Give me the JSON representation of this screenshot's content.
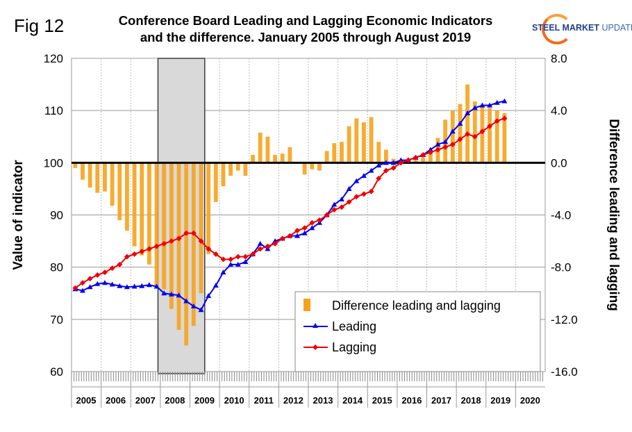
{
  "fig_label": "Fig 12",
  "logo": {
    "text_bold": "STEEL MARKET",
    "text_light": "UPDATE"
  },
  "chart_data": {
    "type": "bar+line",
    "title": "Conference Board Leading and Lagging Economic Indicators and the difference. January 2005 through August 2019",
    "title_lines": [
      "Conference Board Leading and Lagging Economic Indicators",
      "and the difference. January 2005 through August 2019"
    ],
    "ylabel": "Value of indicator",
    "y2label": "Difference leading and lagging",
    "ylim": [
      60,
      120
    ],
    "y2lim": [
      -16,
      8
    ],
    "yticks": [
      "60",
      "70",
      "80",
      "90",
      "100",
      "110",
      "120"
    ],
    "y2ticks": [
      "-16.0",
      "-12.0",
      "-8.0",
      "-4.0",
      "0.0",
      "4.0",
      "8.0"
    ],
    "xlim": [
      2005,
      2021
    ],
    "xticks": [
      "2005",
      "2006",
      "2007",
      "2008",
      "2009",
      "2010",
      "2011",
      "2012",
      "2013",
      "2014",
      "2015",
      "2016",
      "2017",
      "2018",
      "2019",
      "2020"
    ],
    "recession": {
      "start": 2007.92,
      "end": 2009.5
    },
    "legend_position": "bottom-right",
    "x_start": 2005.0,
    "x_step": 0.25,
    "series": [
      {
        "name": "Difference leading and lagging",
        "type": "bar",
        "axis": "right",
        "color": "#f7a21b",
        "values": [
          -0.4,
          -1.3,
          -1.9,
          -2.3,
          -2.2,
          -3.3,
          -4.4,
          -5.2,
          -6.4,
          -7.1,
          -7.8,
          -9.5,
          -9.7,
          -11.2,
          -12.8,
          -14,
          -12.5,
          -10,
          -7,
          -3,
          -1.8,
          -1,
          -0.6,
          -1,
          0.6,
          2.3,
          2.0,
          0.6,
          0.7,
          1.2,
          0,
          -0.9,
          -0.5,
          -0.6,
          0.9,
          1.5,
          1.6,
          2.8,
          3.4,
          3.1,
          3.5,
          1.6,
          1.0,
          0.3,
          0.1,
          0.1,
          0.2,
          0.4,
          0.9,
          1.9,
          3.3,
          4.0,
          4.5,
          6.0,
          4.7,
          4.3,
          4.2,
          4.0,
          3.8
        ]
      },
      {
        "name": "Leading",
        "type": "line",
        "axis": "left",
        "color": "#0000ee",
        "marker": "triangle",
        "values": [
          75.8,
          75.5,
          76.2,
          76.8,
          77,
          76.7,
          76.4,
          76.2,
          76.3,
          76.4,
          76.6,
          76.3,
          75,
          74.8,
          74.6,
          73.5,
          72.5,
          71.8,
          74.5,
          76.5,
          79,
          80.5,
          80.5,
          81,
          82.5,
          84.5,
          83.5,
          85,
          85.5,
          86,
          86,
          86.5,
          87.5,
          88.5,
          90,
          92,
          93,
          95,
          96.5,
          97.5,
          98.5,
          99.5,
          100,
          100,
          100.5,
          100.5,
          101,
          101.5,
          102.5,
          103.5,
          104,
          106,
          107.5,
          109.5,
          110.5,
          111,
          111,
          111.5,
          111.8
        ]
      },
      {
        "name": "Lagging",
        "type": "line",
        "axis": "left",
        "color": "#ee0000",
        "marker": "diamond",
        "values": [
          76,
          77,
          77.8,
          78.5,
          79,
          79.8,
          80.5,
          82,
          82.5,
          83,
          83.5,
          84,
          84.5,
          85,
          85.5,
          86.5,
          86.5,
          85,
          83.5,
          82.5,
          81.5,
          81.5,
          82,
          82,
          82.5,
          83.5,
          84,
          84.5,
          85.5,
          86,
          87,
          87.5,
          88.5,
          89,
          90,
          91,
          91.5,
          92.5,
          93.5,
          94,
          94.5,
          97,
          98.5,
          99,
          100,
          100.5,
          101,
          101.5,
          102,
          102.5,
          103,
          103.5,
          104.5,
          105.5,
          105,
          106,
          107,
          108,
          108.5
        ]
      }
    ]
  }
}
